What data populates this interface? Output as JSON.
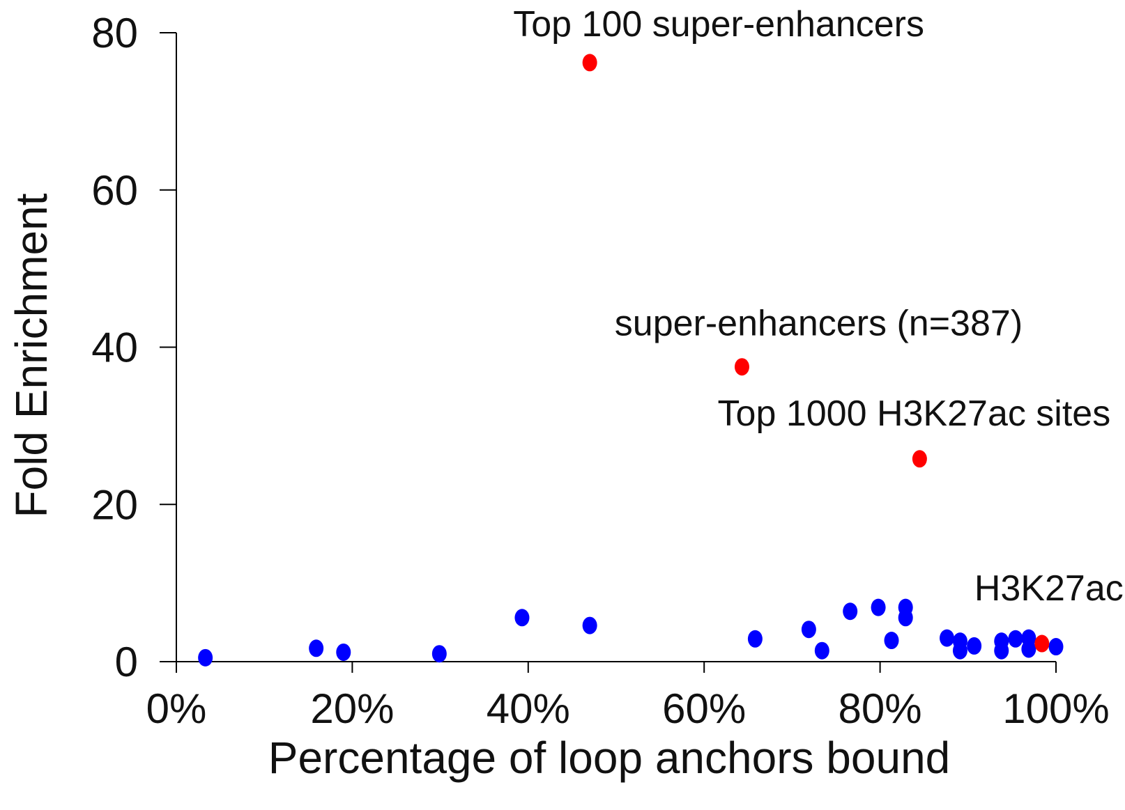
{
  "chart_data": {
    "type": "scatter",
    "xlabel": "Percentage of loop anchors bound",
    "ylabel": "Fold Enrichment",
    "xlim": [
      0,
      100
    ],
    "ylim": [
      0,
      80
    ],
    "x_ticks": [
      0,
      20,
      40,
      60,
      80,
      100
    ],
    "x_tick_labels": [
      "0%",
      "20%",
      "40%",
      "60%",
      "80%",
      "100%"
    ],
    "y_ticks": [
      0,
      20,
      40,
      60,
      80
    ],
    "y_tick_labels": [
      "0",
      "20",
      "40",
      "60",
      "80"
    ],
    "grid": false,
    "colors": {
      "other": "#0000ff",
      "highlight": "#ff0000"
    },
    "series": [
      {
        "color": "#0000ff",
        "points": [
          {
            "x": 3.3,
            "y": 0.5
          },
          {
            "x": 15.9,
            "y": 1.7
          },
          {
            "x": 19.0,
            "y": 1.2
          },
          {
            "x": 29.9,
            "y": 1.0
          },
          {
            "x": 39.3,
            "y": 5.6
          },
          {
            "x": 47.0,
            "y": 4.6
          },
          {
            "x": 65.8,
            "y": 2.9
          },
          {
            "x": 71.9,
            "y": 4.1
          },
          {
            "x": 73.4,
            "y": 1.4
          },
          {
            "x": 76.6,
            "y": 6.4
          },
          {
            "x": 79.8,
            "y": 6.9
          },
          {
            "x": 81.3,
            "y": 2.7
          },
          {
            "x": 82.9,
            "y": 6.9
          },
          {
            "x": 82.9,
            "y": 5.6
          },
          {
            "x": 87.6,
            "y": 3.0
          },
          {
            "x": 89.1,
            "y": 2.6
          },
          {
            "x": 89.1,
            "y": 1.4
          },
          {
            "x": 90.7,
            "y": 2.0
          },
          {
            "x": 93.8,
            "y": 2.6
          },
          {
            "x": 93.8,
            "y": 1.4
          },
          {
            "x": 95.4,
            "y": 2.9
          },
          {
            "x": 96.9,
            "y": 3.0
          },
          {
            "x": 96.9,
            "y": 1.6
          },
          {
            "x": 100.0,
            "y": 1.9
          }
        ]
      },
      {
        "color": "#ff0000",
        "points": [
          {
            "x": 47.0,
            "y": 76.2,
            "label": "Top 100 super-enhancers"
          },
          {
            "x": 64.3,
            "y": 37.5,
            "label": "super-enhancers (n=387)"
          },
          {
            "x": 84.5,
            "y": 25.8,
            "label": "Top 1000 H3K27ac sites"
          },
          {
            "x": 98.4,
            "y": 2.3,
            "label": "H3K27ac"
          }
        ]
      }
    ]
  }
}
